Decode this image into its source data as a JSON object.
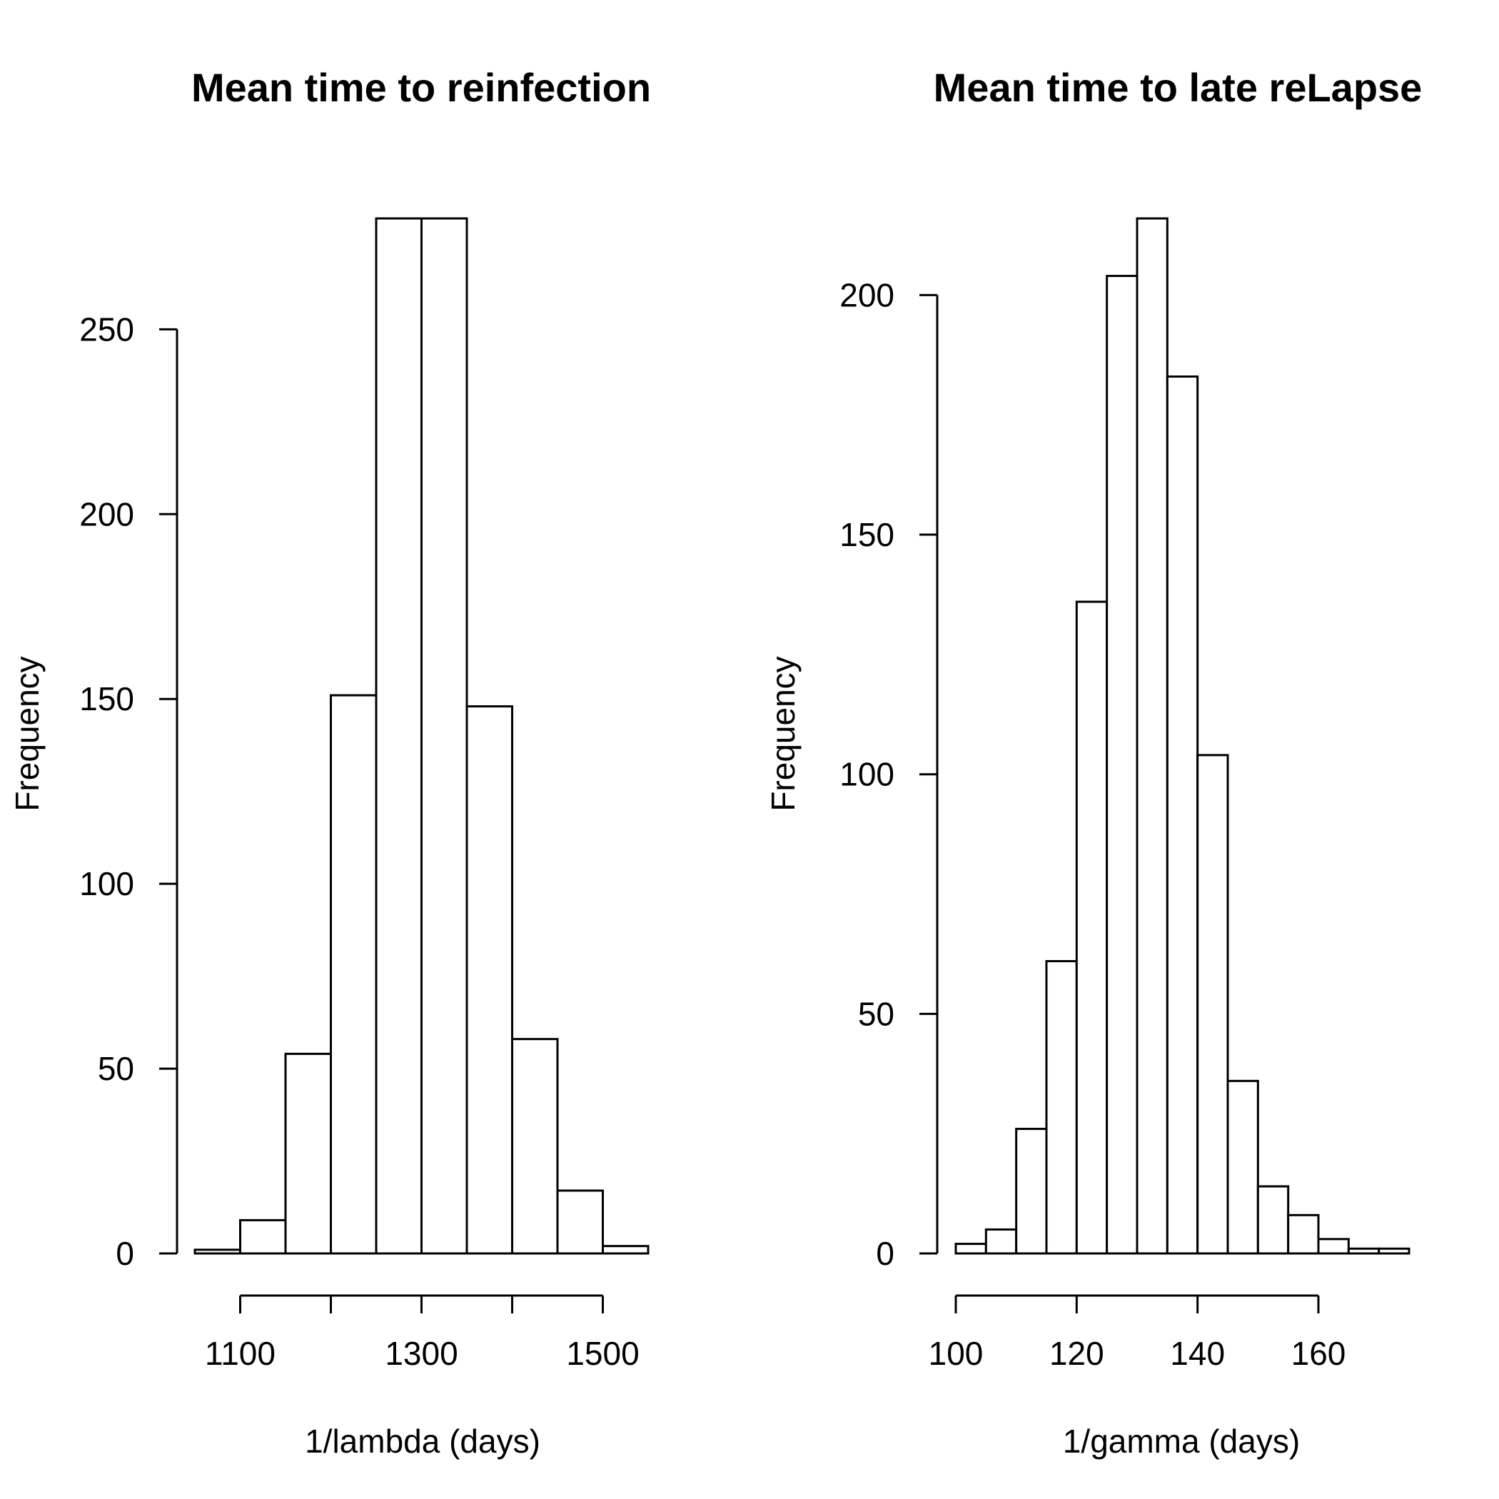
{
  "chart_data": [
    {
      "type": "bar",
      "title": "Mean time to reinfection",
      "xlabel": "1/lambda (days)",
      "ylabel": "Frequency",
      "bin_edges": [
        1050,
        1100,
        1150,
        1200,
        1250,
        1300,
        1350,
        1400,
        1450,
        1500,
        1550
      ],
      "values": [
        1,
        9,
        54,
        151,
        280,
        280,
        148,
        58,
        17,
        2
      ],
      "xlim": [
        1050,
        1550
      ],
      "ylim": [
        0,
        280
      ],
      "x_ticks": [
        1100,
        1200,
        1300,
        1400,
        1500
      ],
      "x_tick_labels": [
        "1100",
        "",
        "1300",
        "",
        "1500"
      ],
      "y_ticks": [
        0,
        50,
        100,
        150,
        200,
        250
      ],
      "y_tick_labels": [
        "0",
        "50",
        "100",
        "150",
        "200",
        "250"
      ],
      "grid": false,
      "legend": "none"
    },
    {
      "type": "bar",
      "title": "Mean time to late reLapse",
      "xlabel": "1/gamma (days)",
      "ylabel": "Frequency",
      "bin_edges": [
        100,
        105,
        110,
        115,
        120,
        125,
        130,
        135,
        140,
        145,
        150,
        155,
        160,
        165,
        170,
        175
      ],
      "values": [
        2,
        5,
        26,
        61,
        136,
        204,
        216,
        183,
        104,
        36,
        14,
        8,
        3,
        1,
        1
      ],
      "xlim": [
        100,
        175
      ],
      "ylim": [
        0,
        216
      ],
      "x_ticks": [
        100,
        120,
        140,
        160
      ],
      "x_tick_labels": [
        "100",
        "120",
        "140",
        "160"
      ],
      "y_ticks": [
        0,
        50,
        100,
        150,
        200
      ],
      "y_tick_labels": [
        "0",
        "50",
        "100",
        "150",
        "200"
      ],
      "grid": false,
      "legend": "none"
    }
  ]
}
